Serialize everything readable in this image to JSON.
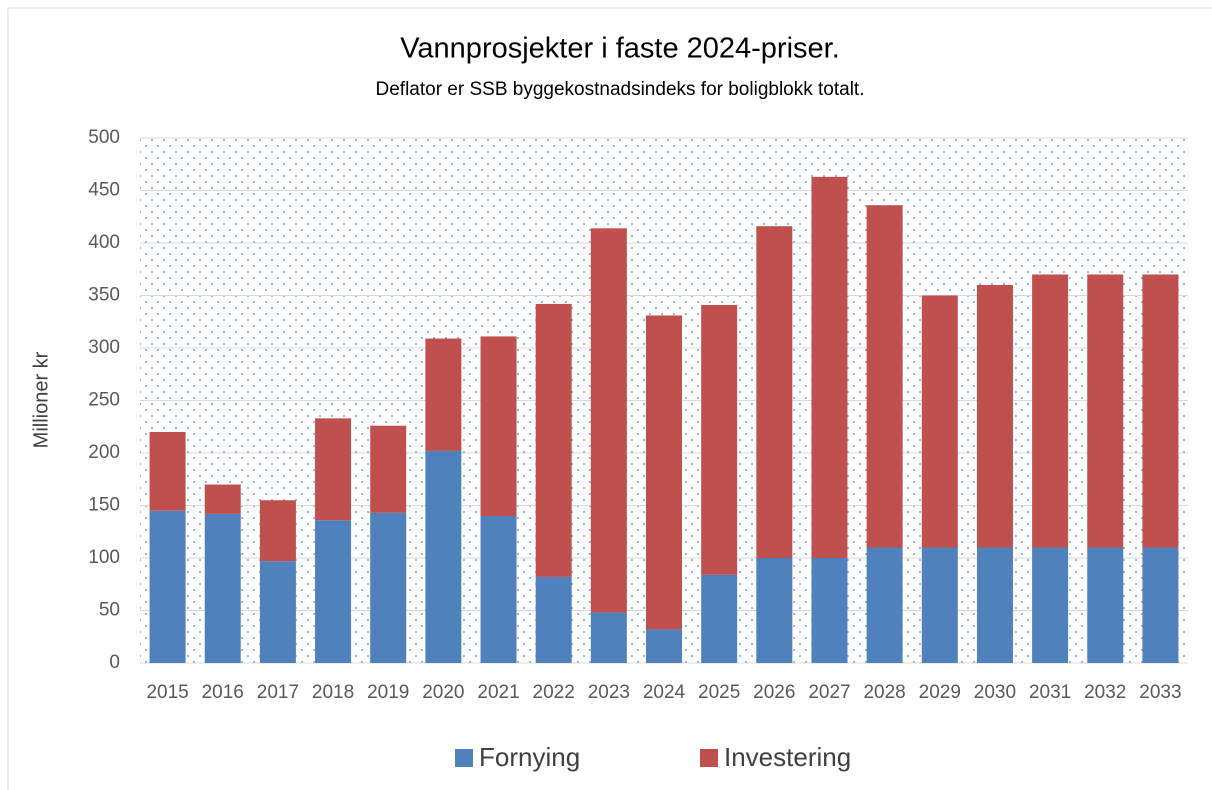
{
  "chart_data": {
    "type": "stacked_bar",
    "title": "Vannprosjekter i faste 2024-priser.",
    "subtitle": "Deflator er SSB byggekostnadsindeks for boligblokk totalt.",
    "y_label": "Millioner kr",
    "categories": [
      "2015",
      "2016",
      "2017",
      "2018",
      "2019",
      "2020",
      "2021",
      "2022",
      "2023",
      "2024",
      "2025",
      "2026",
      "2027",
      "2028",
      "2029",
      "2030",
      "2031",
      "2032",
      "2033"
    ],
    "series": [
      {
        "name": "Fornying",
        "color": "#4f81bd",
        "values": [
          145,
          142,
          97,
          136,
          143,
          202,
          140,
          82,
          48,
          32,
          84,
          100,
          100,
          110,
          110,
          110,
          110,
          110,
          110
        ]
      },
      {
        "name": "Investering",
        "color": "#c0504d",
        "values": [
          75,
          28,
          58,
          97,
          83,
          107,
          171,
          260,
          366,
          299,
          257,
          316,
          363,
          326,
          240,
          250,
          260,
          260,
          260
        ]
      }
    ],
    "ylim": [
      0,
      500
    ],
    "yticks": [
      0,
      50,
      100,
      150,
      200,
      250,
      300,
      350,
      400,
      450,
      500
    ],
    "grid": true,
    "legend": "bottom"
  }
}
